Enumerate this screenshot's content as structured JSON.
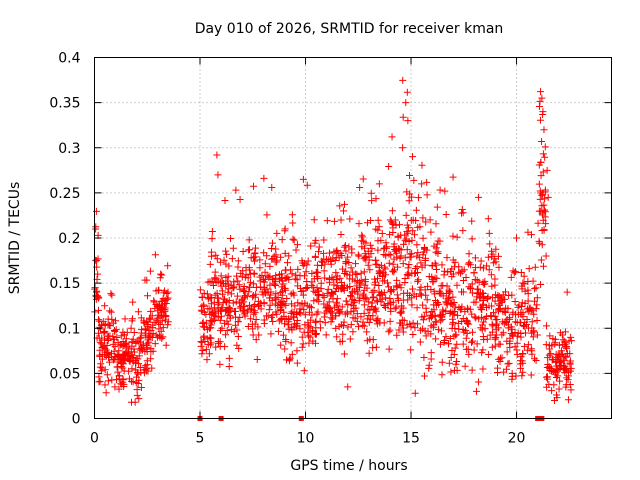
{
  "chart_data": {
    "type": "scatter",
    "title": "Day 010 of 2026, SRMTID for receiver kman",
    "xlabel": "GPS time / hours",
    "ylabel": "SRMTID / TECUs",
    "xlim": [
      0,
      24.5
    ],
    "ylim": [
      0,
      0.4
    ],
    "xticks": [
      0,
      5,
      10,
      15,
      20
    ],
    "xtick_labels": [
      "0",
      "5",
      "10",
      "15",
      "20"
    ],
    "yticks": [
      0,
      0.05,
      0.1,
      0.15,
      0.2,
      0.25,
      0.3,
      0.35,
      0.4
    ],
    "ytick_labels": [
      "0",
      "0.05",
      "0.1",
      "0.15",
      "0.2",
      "0.25",
      "0.3",
      "0.35",
      "0.4"
    ],
    "grid": true,
    "marker": "+",
    "colors": {
      "series": "#ff0000",
      "grid": "#a0a0a0",
      "axis": "#000000"
    },
    "series": [
      {
        "name": "SRMTID",
        "profile": [
          {
            "x_start": 0.0,
            "x_end": 0.2,
            "center": 0.13,
            "spread": 0.045,
            "count": 22
          },
          {
            "x_start": 0.2,
            "x_end": 1.0,
            "center": 0.075,
            "spread": 0.022,
            "count": 80
          },
          {
            "x_start": 1.0,
            "x_end": 2.2,
            "center": 0.062,
            "spread": 0.02,
            "count": 120
          },
          {
            "x_start": 2.2,
            "x_end": 2.8,
            "center": 0.085,
            "spread": 0.022,
            "count": 60
          },
          {
            "x_start": 2.8,
            "x_end": 3.5,
            "center": 0.118,
            "spread": 0.02,
            "count": 70
          },
          {
            "x_start": 5.0,
            "x_end": 5.5,
            "center": 0.105,
            "spread": 0.025,
            "count": 45
          },
          {
            "x_start": 5.5,
            "x_end": 7.0,
            "center": 0.128,
            "spread": 0.03,
            "count": 140
          },
          {
            "x_start": 7.0,
            "x_end": 9.0,
            "center": 0.138,
            "spread": 0.028,
            "count": 180
          },
          {
            "x_start": 9.0,
            "x_end": 10.5,
            "center": 0.125,
            "spread": 0.035,
            "count": 140
          },
          {
            "x_start": 10.5,
            "x_end": 12.5,
            "center": 0.14,
            "spread": 0.03,
            "count": 190
          },
          {
            "x_start": 12.5,
            "x_end": 14.0,
            "center": 0.15,
            "spread": 0.035,
            "count": 150
          },
          {
            "x_start": 14.0,
            "x_end": 15.5,
            "center": 0.16,
            "spread": 0.045,
            "count": 150
          },
          {
            "x_start": 15.5,
            "x_end": 17.0,
            "center": 0.13,
            "spread": 0.04,
            "count": 150
          },
          {
            "x_start": 17.0,
            "x_end": 19.0,
            "center": 0.12,
            "spread": 0.035,
            "count": 170
          },
          {
            "x_start": 19.0,
            "x_end": 20.5,
            "center": 0.105,
            "spread": 0.03,
            "count": 130
          },
          {
            "x_start": 20.5,
            "x_end": 21.0,
            "center": 0.11,
            "spread": 0.03,
            "count": 40
          },
          {
            "x_start": 21.0,
            "x_end": 21.4,
            "center": 0.24,
            "spread": 0.05,
            "count": 45
          },
          {
            "x_start": 21.4,
            "x_end": 22.6,
            "center": 0.065,
            "spread": 0.02,
            "count": 110
          }
        ],
        "highlights": [
          {
            "x": 0.05,
            "y": 0.21
          },
          {
            "x": 0.1,
            "y": 0.175
          },
          {
            "x": 0.15,
            "y": 0.16
          },
          {
            "x": 0.1,
            "y": 0.14
          },
          {
            "x": 5.8,
            "y": 0.292
          },
          {
            "x": 5.85,
            "y": 0.27
          },
          {
            "x": 6.7,
            "y": 0.253
          },
          {
            "x": 8.4,
            "y": 0.256
          },
          {
            "x": 9.9,
            "y": 0.265
          },
          {
            "x": 11.8,
            "y": 0.23
          },
          {
            "x": 13.5,
            "y": 0.26
          },
          {
            "x": 14.1,
            "y": 0.312
          },
          {
            "x": 14.6,
            "y": 0.3
          },
          {
            "x": 14.75,
            "y": 0.35
          },
          {
            "x": 14.85,
            "y": 0.33
          },
          {
            "x": 15.5,
            "y": 0.26
          },
          {
            "x": 16.6,
            "y": 0.252
          },
          {
            "x": 18.2,
            "y": 0.245
          },
          {
            "x": 20.0,
            "y": 0.2
          },
          {
            "x": 21.2,
            "y": 0.355
          },
          {
            "x": 21.25,
            "y": 0.34
          },
          {
            "x": 21.3,
            "y": 0.32
          },
          {
            "x": 21.45,
            "y": 0.275
          },
          {
            "x": 21.5,
            "y": 0.245
          },
          {
            "x": 21.4,
            "y": 0.18
          },
          {
            "x": 21.8,
            "y": 0.02
          },
          {
            "x": 22.4,
            "y": 0.14
          },
          {
            "x": 12.0,
            "y": 0.035
          },
          {
            "x": 15.2,
            "y": 0.028
          },
          {
            "x": 18.1,
            "y": 0.03
          },
          {
            "x": 9.1,
            "y": 0.065
          },
          {
            "x": 2.1,
            "y": 0.022
          }
        ],
        "zero_points": [
          5.0,
          6.0,
          9.8,
          21.0,
          21.2
        ]
      }
    ]
  }
}
